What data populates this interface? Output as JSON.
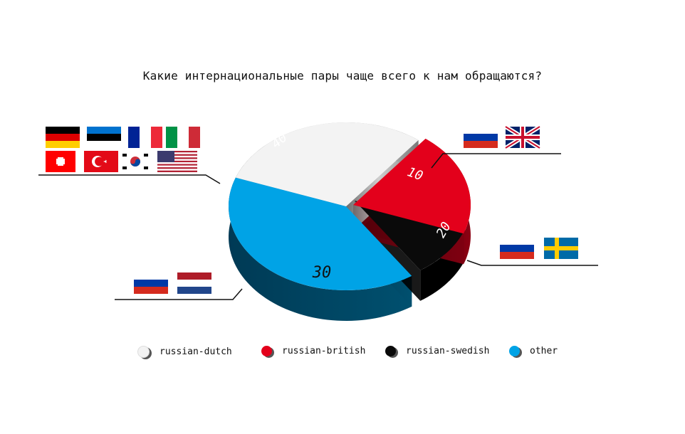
{
  "chart_data": {
    "type": "pie",
    "title": "Какие интернациональные пары чаще всего к нам обращаются?",
    "categories": [
      "russian-dutch",
      "russian-british",
      "russian-swedish",
      "other"
    ],
    "values": [
      30,
      20,
      10,
      40
    ],
    "data_labels": [
      "30",
      "20",
      "10",
      "40"
    ],
    "colors": [
      "#f3f3f3",
      "#e3001b",
      "#0a0a0a",
      "#00a3e6"
    ],
    "legend": {
      "position": "bottom",
      "entries": [
        "russian-dutch",
        "russian-british",
        "russian-swedish",
        "other"
      ]
    },
    "style": "3d-exploded",
    "flag_groups": {
      "other": [
        "germany",
        "estonia",
        "france",
        "italy",
        "switzerland",
        "turkey",
        "south-korea",
        "usa"
      ],
      "russian-swedish": [
        "russia",
        "united-kingdom"
      ],
      "russian-british": [
        "russia",
        "sweden"
      ],
      "russian-dutch": [
        "russia",
        "netherlands"
      ]
    }
  }
}
